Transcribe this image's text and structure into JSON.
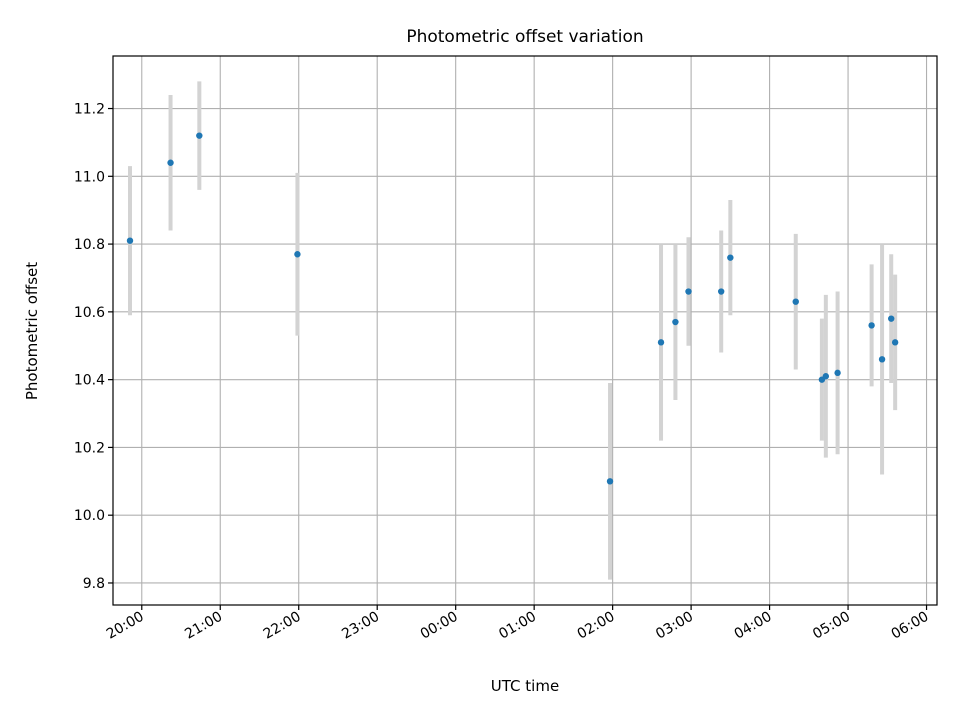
{
  "chart_data": {
    "type": "scatter",
    "title": "Photometric offset variation",
    "xlabel": "UTC time",
    "ylabel": "Photometric offset",
    "grid": true,
    "x_axis": "time",
    "xlim": [
      "19:38",
      "06:08"
    ],
    "ylim": [
      9.735,
      11.355
    ],
    "xticks": [
      "20:00",
      "21:00",
      "22:00",
      "23:00",
      "00:00",
      "01:00",
      "02:00",
      "03:00",
      "04:00",
      "05:00",
      "06:00"
    ],
    "yticks": [
      "9.8",
      "10.0",
      "10.2",
      "10.4",
      "10.6",
      "10.8",
      "11.0",
      "11.2"
    ],
    "colors": {
      "points": "#1f77b4",
      "errorbars": "#d3d3d3",
      "grid": "#b0b0b0"
    },
    "points": [
      {
        "x": "19:51",
        "y": 10.81,
        "yerr": 0.22
      },
      {
        "x": "20:22",
        "y": 11.04,
        "yerr": 0.2
      },
      {
        "x": "20:44",
        "y": 11.12,
        "yerr": 0.16
      },
      {
        "x": "21:59",
        "y": 10.77,
        "yerr": 0.24
      },
      {
        "x": "01:58",
        "y": 10.1,
        "yerr": 0.29
      },
      {
        "x": "02:37",
        "y": 10.51,
        "yerr": 0.29
      },
      {
        "x": "02:48",
        "y": 10.57,
        "yerr": 0.23
      },
      {
        "x": "02:58",
        "y": 10.66,
        "yerr": 0.16
      },
      {
        "x": "03:23",
        "y": 10.66,
        "yerr": 0.18
      },
      {
        "x": "03:30",
        "y": 10.76,
        "yerr": 0.17
      },
      {
        "x": "04:20",
        "y": 10.63,
        "yerr": 0.2
      },
      {
        "x": "04:40",
        "y": 10.4,
        "yerr": 0.18
      },
      {
        "x": "04:43",
        "y": 10.41,
        "yerr": 0.24
      },
      {
        "x": "04:52",
        "y": 10.42,
        "yerr": 0.24
      },
      {
        "x": "05:18",
        "y": 10.56,
        "yerr": 0.18
      },
      {
        "x": "05:26",
        "y": 10.46,
        "yerr": 0.34
      },
      {
        "x": "05:33",
        "y": 10.58,
        "yerr": 0.19
      },
      {
        "x": "05:36",
        "y": 10.51,
        "yerr": 0.2
      }
    ]
  }
}
